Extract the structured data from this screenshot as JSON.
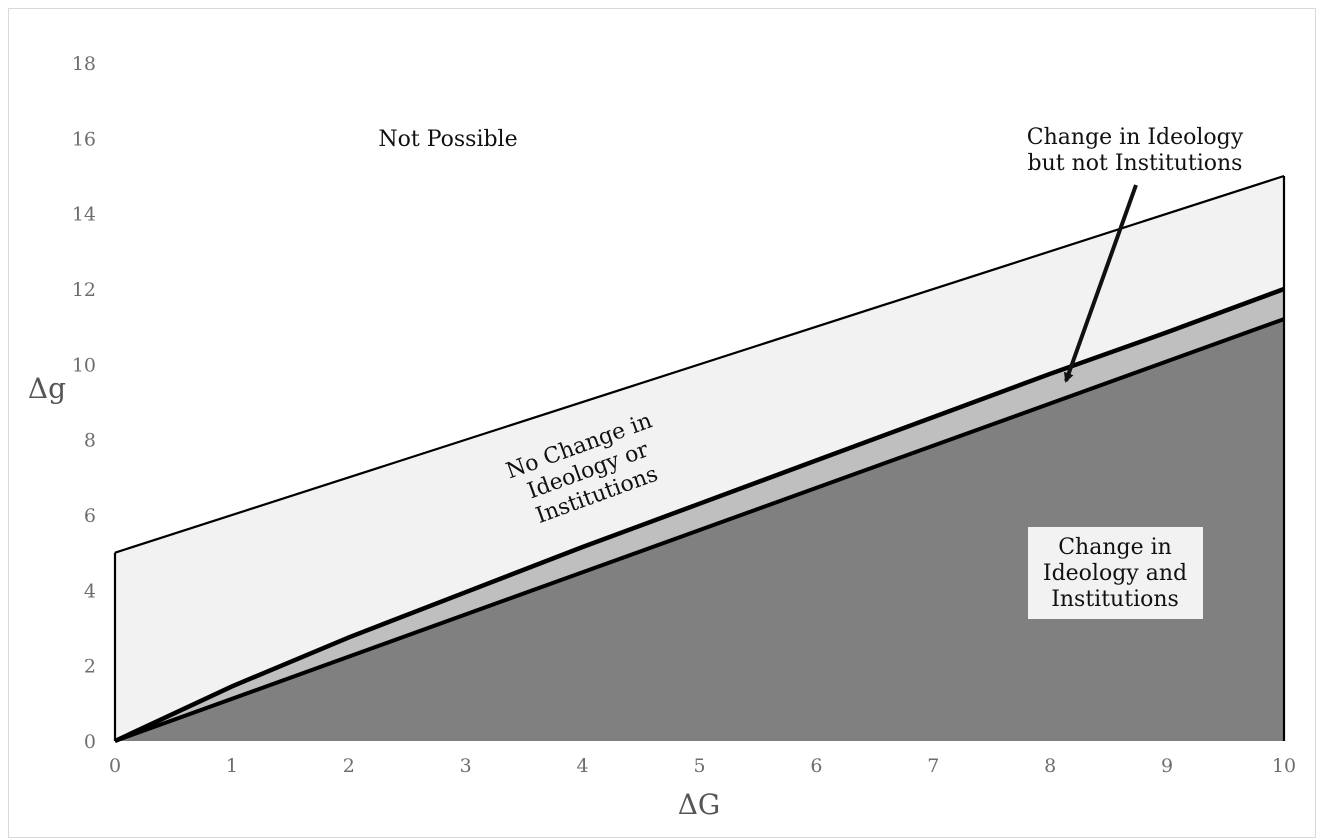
{
  "chart_data": {
    "type": "area",
    "xlabel": "ΔG",
    "ylabel": "Δg",
    "xlim": [
      0,
      10
    ],
    "ylim": [
      0,
      18
    ],
    "xticks": [
      "0",
      "1",
      "2",
      "3",
      "4",
      "5",
      "6",
      "7",
      "8",
      "9",
      "10"
    ],
    "yticks": [
      "0",
      "2",
      "4",
      "6",
      "8",
      "10",
      "12",
      "14",
      "16",
      "18"
    ],
    "grid": false,
    "regions": {
      "upper_boundary": {
        "x": [
          0,
          10
        ],
        "y": [
          5,
          15
        ]
      },
      "middle_boundary": {
        "x": [
          0,
          1,
          2,
          3,
          4,
          5,
          6,
          7,
          8,
          9,
          10
        ],
        "y": [
          0,
          1.45,
          2.75,
          3.95,
          5.15,
          6.3,
          7.45,
          8.6,
          9.75,
          10.85,
          12.0
        ]
      },
      "lower_boundary": {
        "x": [
          0,
          10
        ],
        "y": [
          0,
          11.2
        ]
      },
      "fills": {
        "upper_band": "#f2f2f2",
        "middle_band": "#bfbfbf",
        "lower_band": "#808080"
      }
    },
    "annotations": {
      "not_possible": "Not Possible",
      "no_change_lines": [
        "No Change in",
        "Ideology or",
        "Institutions"
      ],
      "ideology_only_lines": [
        "Change in Ideology",
        "but not Institutions"
      ],
      "both_change_lines": [
        "Change in",
        "Ideology and",
        "Institutions"
      ]
    }
  }
}
